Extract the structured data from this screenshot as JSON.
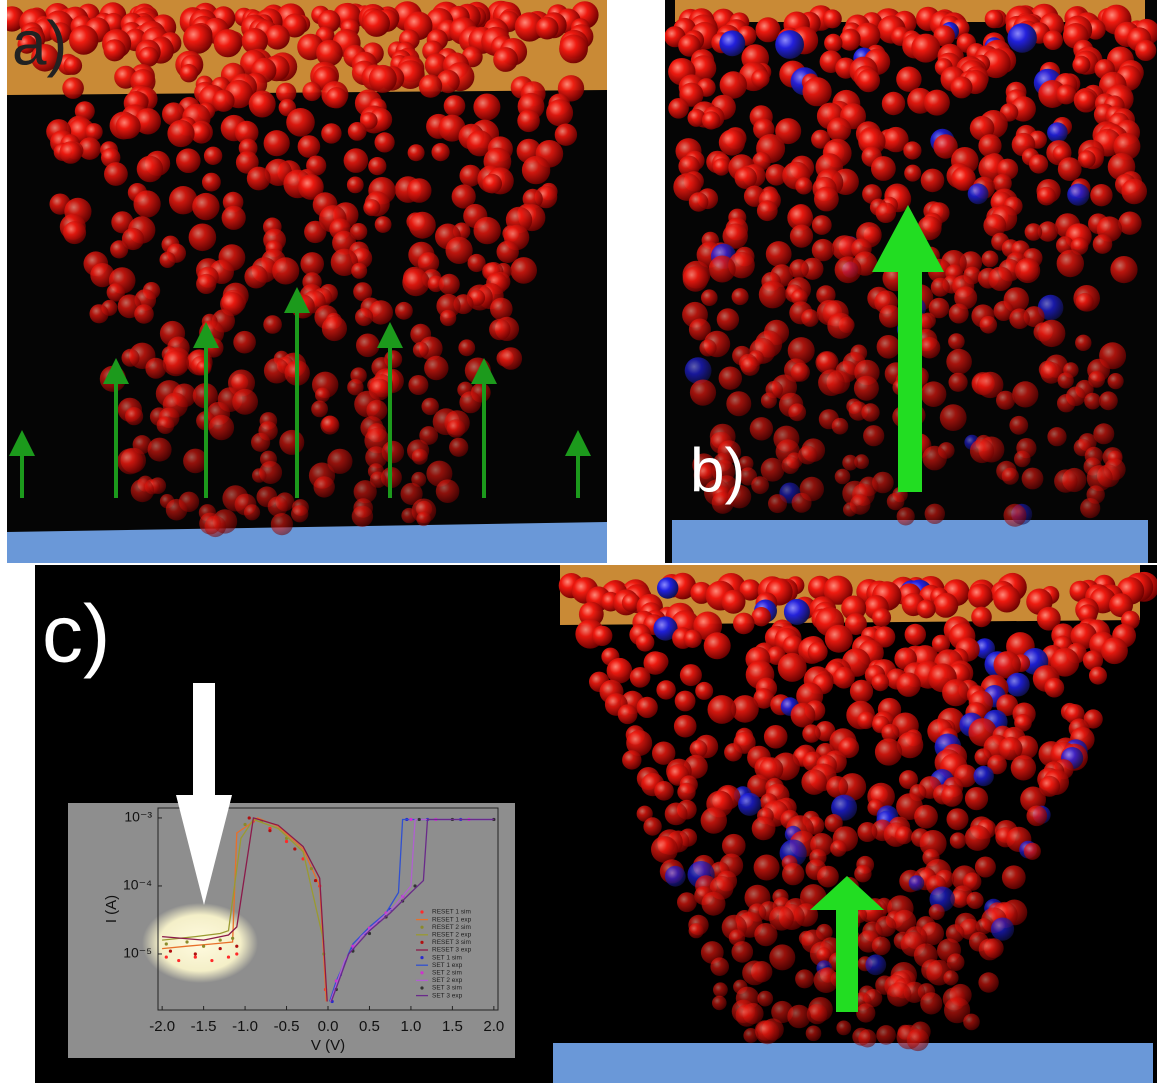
{
  "panels": {
    "a": "a)",
    "b": "b)",
    "c": "c)"
  },
  "chart_data": {
    "type": "line",
    "log_y": true,
    "xlabel": "V (V)",
    "ylabel": "I (A)",
    "xlim": [
      -2.05,
      2.05
    ],
    "ylim": [
      1.5e-06,
      0.0014
    ],
    "xticks": [
      {
        "value": -2,
        "label": "-2.0"
      },
      {
        "value": -1.5,
        "label": "-1.5"
      },
      {
        "value": -1,
        "label": "-1.0"
      },
      {
        "value": -0.5,
        "label": "-0.5"
      },
      {
        "value": 0,
        "label": "0.0"
      },
      {
        "value": 0.5,
        "label": "0.5"
      },
      {
        "value": 1,
        "label": "1.0"
      },
      {
        "value": 1.5,
        "label": "1.5"
      },
      {
        "value": 2,
        "label": "2.0"
      }
    ],
    "yticks": [
      {
        "value": 1e-05,
        "label": "10⁻⁵"
      },
      {
        "value": 0.0001,
        "label": "10⁻⁴"
      },
      {
        "value": 0.001,
        "label": "10⁻³"
      }
    ],
    "series": [
      {
        "name": "RESET 1 sim",
        "mode": "markers",
        "color": "#ff2a2a",
        "x": [
          -1.95,
          -1.8,
          -1.6,
          -1.4,
          -1.2,
          -1.1,
          -0.9,
          -0.7,
          -0.5,
          -0.3,
          -0.1,
          -0.03
        ],
        "values": [
          9e-06,
          8e-06,
          9e-06,
          8e-06,
          9e-06,
          1e-05,
          0.0009,
          0.0007,
          0.00045,
          0.00025,
          0.0001,
          3e-06
        ]
      },
      {
        "name": "RESET 1 exp",
        "mode": "lines",
        "color": "#e8702a",
        "x": [
          -2,
          -1.7,
          -1.4,
          -1.15,
          -1.1,
          -0.95,
          -0.85,
          -0.6,
          -0.3,
          -0.1,
          -0.02
        ],
        "values": [
          1.2e-05,
          1.3e-05,
          1.4e-05,
          1.5e-05,
          0.0006,
          0.0008,
          0.001,
          0.00075,
          0.00035,
          0.0001,
          2e-06
        ]
      },
      {
        "name": "RESET 2 sim",
        "mode": "markers",
        "color": "#8a8a2a",
        "x": [
          -1.95,
          -1.7,
          -1.5,
          -1.3,
          -1.15,
          -1,
          -0.8,
          -0.5,
          -0.2,
          -0.05
        ],
        "values": [
          1.4e-05,
          1.5e-05,
          1.3e-05,
          1.6e-05,
          1.7e-05,
          0.0008,
          0.0009,
          0.0005,
          0.00018,
          1e-05
        ]
      },
      {
        "name": "RESET 2 exp",
        "mode": "lines",
        "color": "#9a9a30",
        "x": [
          -2,
          -1.6,
          -1.3,
          -1.2,
          -1.05,
          -0.9,
          -0.6,
          -0.3,
          -0.05
        ],
        "values": [
          1.6e-05,
          1.8e-05,
          2e-05,
          2.2e-05,
          0.0005,
          0.00095,
          0.0007,
          0.00032,
          1.5e-05
        ]
      },
      {
        "name": "RESET 3 sim",
        "mode": "markers",
        "color": "#b01010",
        "x": [
          -1.9,
          -1.6,
          -1.3,
          -1.1,
          -0.95,
          -0.7,
          -0.4,
          -0.15
        ],
        "values": [
          1.1e-05,
          1e-05,
          1.2e-05,
          1.3e-05,
          0.001,
          0.00065,
          0.00035,
          0.00012
        ]
      },
      {
        "name": "RESET 3 exp",
        "mode": "lines",
        "color": "#8b1a4a",
        "x": [
          -2,
          -1.5,
          -1.2,
          -1.1,
          -0.9,
          -0.6,
          -0.3,
          -0.1,
          -0.01
        ],
        "values": [
          1.8e-05,
          1.6e-05,
          1.9e-05,
          2.5e-05,
          0.001,
          0.00078,
          0.00038,
          0.00013,
          2e-06
        ]
      },
      {
        "name": "SET 1 sim",
        "mode": "markers",
        "color": "#2a2acc",
        "x": [
          0.05,
          0.15,
          0.3,
          0.45,
          0.6,
          0.75,
          0.9,
          0.95,
          1.2,
          1.6,
          2
        ],
        "values": [
          2e-06,
          5e-06,
          1.2e-05,
          2e-05,
          3e-05,
          4.5e-05,
          7e-05,
          0.00095,
          0.00095,
          0.00095,
          0.00095
        ]
      },
      {
        "name": "SET 1 exp",
        "mode": "lines",
        "color": "#3050d0",
        "x": [
          0.02,
          0.1,
          0.3,
          0.5,
          0.7,
          0.85,
          0.9,
          1.2,
          2
        ],
        "values": [
          2e-06,
          4e-06,
          1.4e-05,
          2.5e-05,
          4e-05,
          8e-05,
          0.00095,
          0.00095,
          0.00095
        ]
      },
      {
        "name": "SET 2 sim",
        "mode": "markers",
        "color": "#d030d0",
        "x": [
          0.1,
          0.3,
          0.5,
          0.7,
          0.9,
          1,
          1.3,
          1.7,
          2
        ],
        "values": [
          4e-06,
          1.3e-05,
          2.4e-05,
          4e-05,
          7e-05,
          0.00095,
          0.00095,
          0.00095,
          0.00095
        ]
      },
      {
        "name": "SET 2 exp",
        "mode": "lines",
        "color": "#b060d0",
        "x": [
          0.03,
          0.2,
          0.4,
          0.6,
          0.8,
          1,
          1.05,
          1.5,
          2
        ],
        "values": [
          2e-06,
          8e-06,
          1.8e-05,
          3e-05,
          5e-05,
          0.0001,
          0.00095,
          0.00095,
          0.00095
        ]
      },
      {
        "name": "SET 3 sim",
        "mode": "markers",
        "color": "#333333",
        "x": [
          0.1,
          0.3,
          0.5,
          0.7,
          0.9,
          1.05,
          1.1,
          1.5,
          2
        ],
        "values": [
          3e-06,
          1.1e-05,
          2e-05,
          3.5e-05,
          6e-05,
          0.0001,
          0.00095,
          0.00095,
          0.00095
        ]
      },
      {
        "name": "SET 3 exp",
        "mode": "lines",
        "color": "#6a2a8a",
        "x": [
          0.04,
          0.25,
          0.5,
          0.75,
          1,
          1.15,
          1.2,
          1.6,
          2
        ],
        "values": [
          2e-06,
          1e-05,
          2.2e-05,
          4e-05,
          8e-05,
          0.00012,
          0.00095,
          0.00095,
          0.00095
        ]
      }
    ]
  }
}
